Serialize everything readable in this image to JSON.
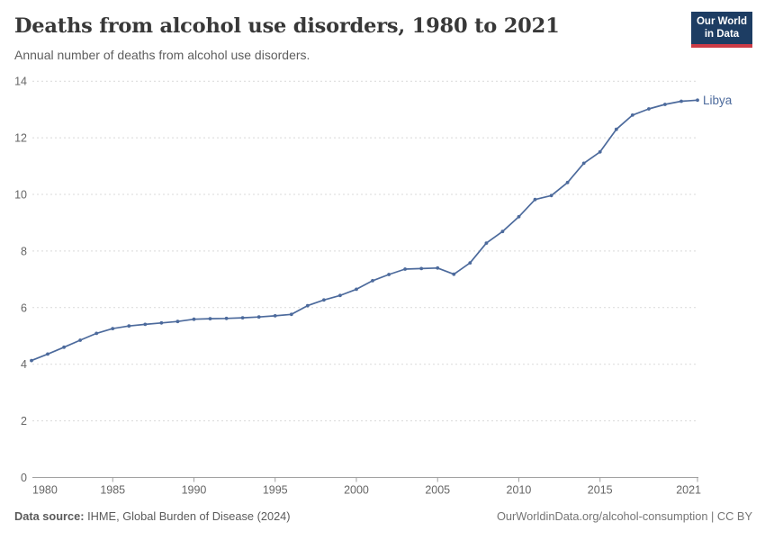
{
  "header": {
    "title": "Deaths from alcohol use disorders, 1980 to 2021",
    "subtitle": "Annual number of deaths from alcohol use disorders."
  },
  "logo": {
    "line1": "Our World",
    "line2": "in Data",
    "bg_color": "#1d3d63",
    "bar_color": "#cc3b46"
  },
  "footer": {
    "source_label": "Data source:",
    "source_text": " IHME, Global Burden of Disease (2024)",
    "right_text": "OurWorldinData.org/alcohol-consumption | CC BY"
  },
  "chart_data": {
    "type": "line",
    "title": "Deaths from alcohol use disorders, 1980 to 2021",
    "subtitle": "Annual number of deaths from alcohol use disorders.",
    "xlabel": "",
    "ylabel": "",
    "xlim": [
      1980,
      2021
    ],
    "ylim": [
      0,
      14
    ],
    "x_ticks": [
      1980,
      1985,
      1990,
      1995,
      2000,
      2005,
      2010,
      2015,
      2021
    ],
    "y_ticks": [
      0,
      2,
      4,
      6,
      8,
      10,
      12,
      14
    ],
    "grid": "horizontal-dashed",
    "legend_position": "end-of-line-label",
    "colors": {
      "line": "#4c6a9c",
      "grid": "#d9d9d9",
      "axis": "#a1a1a1",
      "tick_label": "#666666"
    },
    "years": [
      1980,
      1981,
      1982,
      1983,
      1984,
      1985,
      1986,
      1987,
      1988,
      1989,
      1990,
      1991,
      1992,
      1993,
      1994,
      1995,
      1996,
      1997,
      1998,
      1999,
      2000,
      2001,
      2002,
      2003,
      2004,
      2005,
      2006,
      2007,
      2008,
      2009,
      2010,
      2011,
      2012,
      2013,
      2014,
      2015,
      2016,
      2017,
      2018,
      2019,
      2020,
      2021
    ],
    "series": [
      {
        "name": "Libya",
        "color": "#4c6a9c",
        "values": [
          4.13,
          4.36,
          4.6,
          4.85,
          5.09,
          5.26,
          5.35,
          5.41,
          5.46,
          5.51,
          5.59,
          5.61,
          5.62,
          5.64,
          5.67,
          5.71,
          5.76,
          6.07,
          6.27,
          6.43,
          6.65,
          6.95,
          7.17,
          7.36,
          7.38,
          7.4,
          7.18,
          7.58,
          8.28,
          8.69,
          9.21,
          9.82,
          9.96,
          10.42,
          11.1,
          11.5,
          12.3,
          12.8,
          13.02,
          13.18,
          13.29,
          13.33
        ]
      }
    ]
  }
}
